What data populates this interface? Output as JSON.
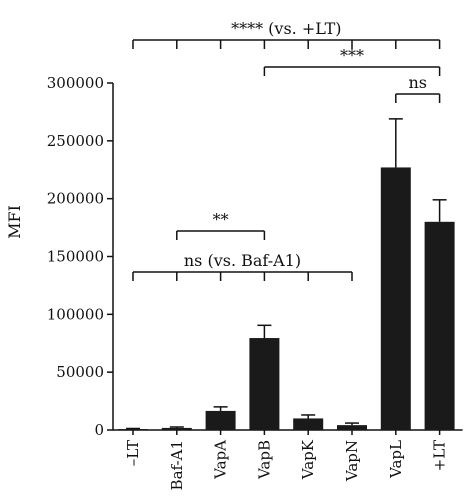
{
  "chart_data": {
    "type": "bar",
    "categories": [
      "–LT",
      "Baf-A1",
      "VapA",
      "VapB",
      "VapK",
      "VapN",
      "VapL",
      "+LT"
    ],
    "values": [
      800,
      1800,
      16500,
      79500,
      10000,
      4200,
      227000,
      180000
    ],
    "errors": [
      500,
      800,
      3500,
      11000,
      3000,
      1800,
      42000,
      19000
    ],
    "ylabel": "MFI",
    "xlabel": "",
    "ylim": [
      0,
      300000
    ],
    "yticks": [
      "0",
      "50000",
      "100000",
      "150000",
      "200000",
      "250000",
      "300000"
    ],
    "bar_color": "#1a1a1a",
    "grid": false,
    "annotations": [
      {
        "label": "**** (vs. +LT)",
        "from": "–LT",
        "to": "+LT",
        "multi": true
      },
      {
        "label": "***",
        "from": "VapB",
        "to": "+LT",
        "multi": false
      },
      {
        "label": "ns",
        "from": "VapL",
        "to": "+LT",
        "multi": false
      },
      {
        "label": "**",
        "from": "Baf-A1",
        "to": "VapB",
        "multi": false
      },
      {
        "label": "ns (vs. Baf-A1)",
        "from": "–LT",
        "to": "VapN",
        "multi": true
      }
    ]
  }
}
